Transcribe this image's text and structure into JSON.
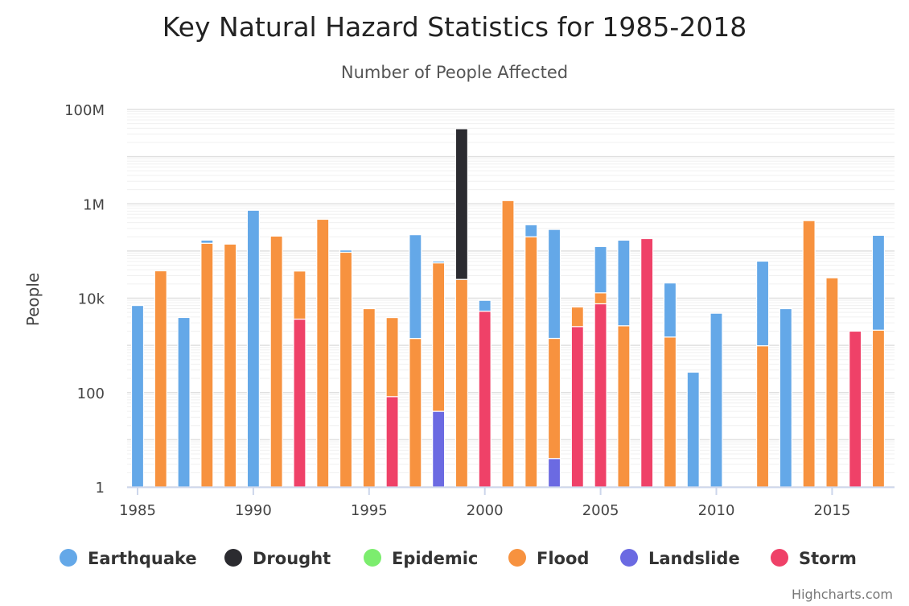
{
  "chart_data": {
    "type": "bar",
    "stacked": true,
    "title": "Key Natural Hazard Statistics for 1985-2018",
    "subtitle": "Number of People Affected",
    "xlabel": "",
    "ylabel": "People",
    "yscale": "log",
    "ylim": [
      1,
      100000000
    ],
    "y_tick_labels": [
      "1",
      "100",
      "10k",
      "1M",
      "100M"
    ],
    "y_tick_values": [
      1,
      100,
      10000,
      1000000,
      100000000
    ],
    "x_tick_labels": [
      "1985",
      "1990",
      "1995",
      "2000",
      "2005",
      "2010",
      "2015"
    ],
    "x_tick_values": [
      1985,
      1990,
      1995,
      2000,
      2005,
      2010,
      2015
    ],
    "grid": true,
    "legend_position": "bottom",
    "categories": [
      1985,
      1986,
      1987,
      1988,
      1989,
      1990,
      1991,
      1992,
      1993,
      1994,
      1995,
      1996,
      1997,
      1998,
      1999,
      2000,
      2001,
      2002,
      2003,
      2004,
      2005,
      2006,
      2007,
      2008,
      2009,
      2010,
      2011,
      2012,
      2013,
      2014,
      2015,
      2016,
      2017
    ],
    "series": [
      {
        "name": "Earthquake",
        "color": "#64a8e8",
        "values": [
          7000,
          0,
          3900,
          24000,
          0,
          730000,
          0,
          0,
          0,
          11000,
          0,
          0,
          220000,
          5000,
          0,
          3700,
          0,
          160000,
          285000,
          0,
          111000,
          167000,
          0,
          19500,
          270,
          4800,
          0,
          60000,
          6000,
          0,
          0,
          0,
          213000
        ]
      },
      {
        "name": "Drought",
        "color": "#2b2b30",
        "values": [
          0,
          0,
          0,
          0,
          0,
          0,
          0,
          0,
          0,
          0,
          0,
          0,
          0,
          0,
          39000000,
          0,
          0,
          0,
          0,
          0,
          0,
          0,
          0,
          0,
          0,
          0,
          0,
          0,
          0,
          0,
          0,
          0,
          0
        ]
      },
      {
        "name": "Epidemic",
        "color": "#7ced6e",
        "values": [
          0,
          0,
          0,
          0,
          0,
          0,
          0,
          0,
          0,
          0,
          0,
          0,
          0,
          0,
          0,
          0,
          0,
          0,
          0,
          0,
          0,
          0,
          0,
          0,
          0,
          0,
          0,
          0,
          0,
          0,
          0,
          0,
          0
        ]
      },
      {
        "name": "Flood",
        "color": "#f7923f",
        "values": [
          0,
          38000,
          0,
          146000,
          140000,
          0,
          207000,
          34000,
          470000,
          94000,
          6000,
          3800,
          1400,
          56000,
          25000,
          0,
          1170000,
          200000,
          1400,
          4000,
          5400,
          2600,
          0,
          1500,
          0,
          0,
          0,
          980,
          0,
          440000,
          27000,
          0,
          2100
        ]
      },
      {
        "name": "Landslide",
        "color": "#6b6ae2",
        "values": [
          0,
          0,
          0,
          0,
          0,
          0,
          0,
          0,
          0,
          0,
          0,
          0,
          0,
          40,
          0,
          0,
          0,
          0,
          4,
          0,
          0,
          0,
          0,
          0,
          0,
          0,
          0,
          0,
          0,
          0,
          0,
          0,
          0
        ]
      },
      {
        "name": "Storm",
        "color": "#ef4168",
        "values": [
          0,
          0,
          0,
          0,
          0,
          0,
          0,
          3600,
          0,
          0,
          0,
          82,
          0,
          0,
          0,
          5300,
          0,
          0,
          0,
          2500,
          7600,
          0,
          183000,
          0,
          0,
          0,
          0,
          0,
          0,
          0,
          0,
          2000,
          0
        ]
      }
    ]
  },
  "credit": "Highcharts.com"
}
